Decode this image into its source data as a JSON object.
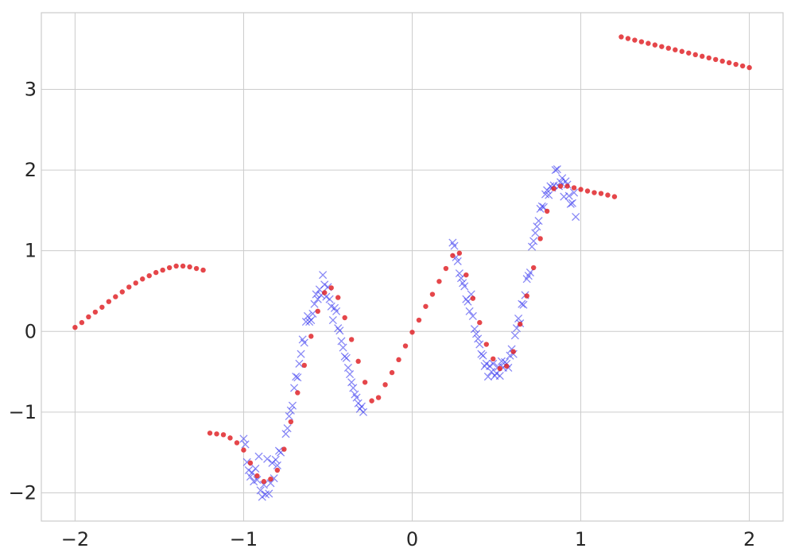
{
  "chart_data": {
    "type": "scatter",
    "title": "",
    "xlabel": "",
    "ylabel": "",
    "xlim": [
      -2.2,
      2.2
    ],
    "ylim": [
      -2.35,
      3.95
    ],
    "x_ticks": [
      -2,
      -1,
      0,
      1,
      2
    ],
    "x_tick_labels": [
      "−2",
      "−1",
      "0",
      "1",
      "2"
    ],
    "y_ticks": [
      -2,
      -1,
      0,
      1,
      2,
      3
    ],
    "y_tick_labels": [
      "−2",
      "−1",
      "0",
      "1",
      "2",
      "3"
    ],
    "grid": true,
    "series": [
      {
        "marker": "x",
        "color": "#3b3bf0",
        "points": [
          [
            -1.0,
            -1.33
          ],
          [
            -0.99,
            -1.4
          ],
          [
            -0.98,
            -1.62
          ],
          [
            -0.97,
            -1.72
          ],
          [
            -0.96,
            -1.8
          ],
          [
            -0.95,
            -1.75
          ],
          [
            -0.94,
            -1.86
          ],
          [
            -0.93,
            -1.7
          ],
          [
            -0.92,
            -1.84
          ],
          [
            -0.91,
            -1.55
          ],
          [
            -0.9,
            -1.97
          ],
          [
            -0.89,
            -2.05
          ],
          [
            -0.88,
            -1.9
          ],
          [
            -0.87,
            -2.02
          ],
          [
            -0.86,
            -1.58
          ],
          [
            -0.85,
            -2.01
          ],
          [
            -0.84,
            -1.88
          ],
          [
            -0.83,
            -1.63
          ],
          [
            -0.82,
            -1.82
          ],
          [
            -0.81,
            -1.59
          ],
          [
            -0.8,
            -1.66
          ],
          [
            -0.79,
            -1.48
          ],
          [
            -0.78,
            -1.5
          ],
          [
            -0.75,
            -1.27
          ],
          [
            -0.74,
            -1.2
          ],
          [
            -0.73,
            -1.05
          ],
          [
            -0.72,
            -0.98
          ],
          [
            -0.71,
            -0.92
          ],
          [
            -0.7,
            -0.7
          ],
          [
            -0.69,
            -0.56
          ],
          [
            -0.68,
            -0.57
          ],
          [
            -0.67,
            -0.4
          ],
          [
            -0.66,
            -0.28
          ],
          [
            -0.65,
            -0.1
          ],
          [
            -0.64,
            -0.14
          ],
          [
            -0.63,
            0.12
          ],
          [
            -0.62,
            0.19
          ],
          [
            -0.61,
            0.12
          ],
          [
            -0.6,
            0.14
          ],
          [
            -0.59,
            0.22
          ],
          [
            -0.58,
            0.34
          ],
          [
            -0.57,
            0.46
          ],
          [
            -0.56,
            0.4
          ],
          [
            -0.55,
            0.52
          ],
          [
            -0.54,
            0.45
          ],
          [
            -0.53,
            0.7
          ],
          [
            -0.52,
            0.58
          ],
          [
            -0.51,
            0.43
          ],
          [
            -0.5,
            0.55
          ],
          [
            -0.49,
            0.4
          ],
          [
            -0.48,
            0.31
          ],
          [
            -0.47,
            0.14
          ],
          [
            -0.46,
            0.29
          ],
          [
            -0.45,
            0.25
          ],
          [
            -0.44,
            0.04
          ],
          [
            -0.43,
            0.01
          ],
          [
            -0.42,
            -0.12
          ],
          [
            -0.41,
            -0.2
          ],
          [
            -0.4,
            -0.31
          ],
          [
            -0.39,
            -0.33
          ],
          [
            -0.38,
            -0.45
          ],
          [
            -0.37,
            -0.53
          ],
          [
            -0.36,
            -0.63
          ],
          [
            -0.35,
            -0.7
          ],
          [
            -0.34,
            -0.78
          ],
          [
            -0.33,
            -0.82
          ],
          [
            -0.32,
            -0.89
          ],
          [
            -0.31,
            -0.96
          ],
          [
            -0.3,
            -0.93
          ],
          [
            -0.29,
            -1.0
          ],
          [
            0.24,
            1.1
          ],
          [
            0.25,
            1.06
          ],
          [
            0.26,
            0.92
          ],
          [
            0.27,
            0.87
          ],
          [
            0.28,
            0.72
          ],
          [
            0.29,
            0.66
          ],
          [
            0.3,
            0.6
          ],
          [
            0.31,
            0.56
          ],
          [
            0.32,
            0.4
          ],
          [
            0.33,
            0.37
          ],
          [
            0.34,
            0.25
          ],
          [
            0.35,
            0.46
          ],
          [
            0.36,
            0.19
          ],
          [
            0.37,
            0.03
          ],
          [
            0.38,
            -0.03
          ],
          [
            0.39,
            -0.09
          ],
          [
            0.4,
            -0.16
          ],
          [
            0.41,
            -0.28
          ],
          [
            0.42,
            -0.3
          ],
          [
            0.43,
            -0.43
          ],
          [
            0.44,
            -0.4
          ],
          [
            0.45,
            -0.56
          ],
          [
            0.46,
            -0.43
          ],
          [
            0.47,
            -0.5
          ],
          [
            0.48,
            -0.4
          ],
          [
            0.49,
            -0.55
          ],
          [
            0.5,
            -0.52
          ],
          [
            0.51,
            -0.44
          ],
          [
            0.52,
            -0.55
          ],
          [
            0.53,
            -0.37
          ],
          [
            0.54,
            -0.45
          ],
          [
            0.55,
            -0.38
          ],
          [
            0.56,
            -0.4
          ],
          [
            0.57,
            -0.45
          ],
          [
            0.58,
            -0.3
          ],
          [
            0.59,
            -0.22
          ],
          [
            0.6,
            -0.28
          ],
          [
            0.61,
            -0.05
          ],
          [
            0.62,
            0.04
          ],
          [
            0.63,
            0.16
          ],
          [
            0.64,
            0.1
          ],
          [
            0.65,
            0.34
          ],
          [
            0.66,
            0.33
          ],
          [
            0.67,
            0.45
          ],
          [
            0.68,
            0.65
          ],
          [
            0.69,
            0.69
          ],
          [
            0.7,
            0.73
          ],
          [
            0.71,
            1.05
          ],
          [
            0.72,
            1.12
          ],
          [
            0.73,
            1.22
          ],
          [
            0.74,
            1.3
          ],
          [
            0.75,
            1.37
          ],
          [
            0.76,
            1.52
          ],
          [
            0.77,
            1.55
          ],
          [
            0.78,
            1.54
          ],
          [
            0.79,
            1.7
          ],
          [
            0.8,
            1.75
          ],
          [
            0.81,
            1.69
          ],
          [
            0.82,
            1.8
          ],
          [
            0.83,
            1.78
          ],
          [
            0.84,
            1.81
          ],
          [
            0.85,
            2.0
          ],
          [
            0.86,
            2.01
          ],
          [
            0.87,
            1.8
          ],
          [
            0.88,
            1.85
          ],
          [
            0.89,
            1.9
          ],
          [
            0.9,
            1.67
          ],
          [
            0.91,
            1.86
          ],
          [
            0.92,
            1.82
          ],
          [
            0.93,
            1.68
          ],
          [
            0.94,
            1.58
          ],
          [
            0.95,
            1.59
          ],
          [
            0.96,
            1.72
          ],
          [
            0.97,
            1.42
          ]
        ]
      },
      {
        "marker": "o",
        "color": "#e0262a",
        "points": [
          [
            -2.0,
            0.05
          ],
          [
            -1.96,
            0.11
          ],
          [
            -1.92,
            0.18
          ],
          [
            -1.88,
            0.24
          ],
          [
            -1.84,
            0.3
          ],
          [
            -1.8,
            0.37
          ],
          [
            -1.76,
            0.43
          ],
          [
            -1.72,
            0.49
          ],
          [
            -1.68,
            0.55
          ],
          [
            -1.64,
            0.6
          ],
          [
            -1.6,
            0.65
          ],
          [
            -1.56,
            0.69
          ],
          [
            -1.52,
            0.73
          ],
          [
            -1.48,
            0.76
          ],
          [
            -1.44,
            0.79
          ],
          [
            -1.4,
            0.81
          ],
          [
            -1.36,
            0.81
          ],
          [
            -1.32,
            0.8
          ],
          [
            -1.28,
            0.78
          ],
          [
            -1.24,
            0.76
          ],
          [
            -1.2,
            -1.26
          ],
          [
            -1.16,
            -1.27
          ],
          [
            -1.12,
            -1.28
          ],
          [
            -1.08,
            -1.32
          ],
          [
            -1.04,
            -1.38
          ],
          [
            -1.0,
            -1.47
          ],
          [
            -0.96,
            -1.63
          ],
          [
            -0.92,
            -1.79
          ],
          [
            -0.88,
            -1.86
          ],
          [
            -0.84,
            -1.83
          ],
          [
            -0.8,
            -1.72
          ],
          [
            -0.76,
            -1.46
          ],
          [
            -0.72,
            -1.12
          ],
          [
            -0.68,
            -0.76
          ],
          [
            -0.64,
            -0.42
          ],
          [
            -0.6,
            -0.06
          ],
          [
            -0.56,
            0.25
          ],
          [
            -0.52,
            0.48
          ],
          [
            -0.48,
            0.54
          ],
          [
            -0.44,
            0.42
          ],
          [
            -0.4,
            0.17
          ],
          [
            -0.36,
            -0.1
          ],
          [
            -0.32,
            -0.37
          ],
          [
            -0.28,
            -0.63
          ],
          [
            -0.24,
            -0.86
          ],
          [
            -0.2,
            -0.82
          ],
          [
            -0.16,
            -0.66
          ],
          [
            -0.12,
            -0.51
          ],
          [
            -0.08,
            -0.35
          ],
          [
            -0.04,
            -0.18
          ],
          [
            0.0,
            -0.01
          ],
          [
            0.04,
            0.14
          ],
          [
            0.08,
            0.31
          ],
          [
            0.12,
            0.46
          ],
          [
            0.16,
            0.62
          ],
          [
            0.2,
            0.78
          ],
          [
            0.24,
            0.94
          ],
          [
            0.28,
            0.97
          ],
          [
            0.32,
            0.7
          ],
          [
            0.36,
            0.41
          ],
          [
            0.4,
            0.11
          ],
          [
            0.44,
            -0.16
          ],
          [
            0.48,
            -0.34
          ],
          [
            0.52,
            -0.46
          ],
          [
            0.56,
            -0.43
          ],
          [
            0.6,
            -0.25
          ],
          [
            0.64,
            0.09
          ],
          [
            0.68,
            0.44
          ],
          [
            0.72,
            0.79
          ],
          [
            0.76,
            1.15
          ],
          [
            0.8,
            1.49
          ],
          [
            0.84,
            1.77
          ],
          [
            0.88,
            1.8
          ],
          [
            0.92,
            1.8
          ],
          [
            0.96,
            1.78
          ],
          [
            1.0,
            1.76
          ],
          [
            1.04,
            1.74
          ],
          [
            1.08,
            1.72
          ],
          [
            1.12,
            1.71
          ],
          [
            1.16,
            1.69
          ],
          [
            1.2,
            1.67
          ],
          [
            1.24,
            3.65
          ],
          [
            1.28,
            3.63
          ],
          [
            1.32,
            3.61
          ],
          [
            1.36,
            3.59
          ],
          [
            1.4,
            3.57
          ],
          [
            1.44,
            3.55
          ],
          [
            1.48,
            3.53
          ],
          [
            1.52,
            3.51
          ],
          [
            1.56,
            3.49
          ],
          [
            1.6,
            3.47
          ],
          [
            1.64,
            3.45
          ],
          [
            1.68,
            3.43
          ],
          [
            1.72,
            3.41
          ],
          [
            1.76,
            3.39
          ],
          [
            1.8,
            3.37
          ],
          [
            1.84,
            3.35
          ],
          [
            1.88,
            3.33
          ],
          [
            1.92,
            3.31
          ],
          [
            1.96,
            3.29
          ],
          [
            2.0,
            3.27
          ]
        ]
      }
    ]
  }
}
